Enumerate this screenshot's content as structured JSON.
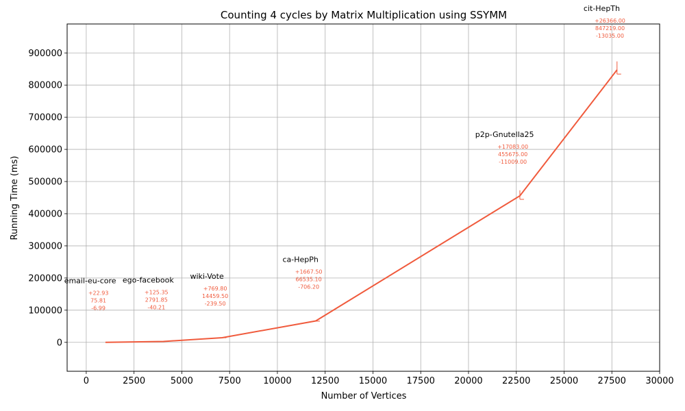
{
  "chart_data": {
    "type": "line",
    "title": "Counting 4 cycles by Matrix Multiplication using SSYMM",
    "xlabel": "Number of Vertices",
    "ylabel": "Running Time (ms)",
    "xlim": [
      -1000,
      30000
    ],
    "ylim": [
      -90000,
      990000
    ],
    "xticks": [
      0,
      2500,
      5000,
      7500,
      10000,
      12500,
      15000,
      17500,
      20000,
      22500,
      25000,
      27500,
      30000
    ],
    "yticks": [
      0,
      100000,
      200000,
      300000,
      400000,
      500000,
      600000,
      700000,
      800000,
      900000
    ],
    "x_tick_labels": [
      "0",
      "2500",
      "5000",
      "7500",
      "10000",
      "12500",
      "15000",
      "17500",
      "20000",
      "22500",
      "25000",
      "27500",
      "30000"
    ],
    "y_tick_labels": [
      "0",
      "100000",
      "200000",
      "300000",
      "400000",
      "500000",
      "600000",
      "700000",
      "800000",
      "900000"
    ],
    "grid": true,
    "line_color": "#f05a3c",
    "points": [
      {
        "name": "email-eu-core",
        "x": 1005,
        "y": 75.81,
        "plus": "+22.93",
        "mean": "75.81",
        "minus": "-6.99"
      },
      {
        "name": "ego-facebook",
        "x": 4039,
        "y": 2791.85,
        "plus": "+125.35",
        "mean": "2791.85",
        "minus": "-40.21"
      },
      {
        "name": "wiki-Vote",
        "x": 7115,
        "y": 14459.5,
        "plus": "+769.80",
        "mean": "14459.50",
        "minus": "-239.50"
      },
      {
        "name": "ca-HepPh",
        "x": 12008,
        "y": 66535.1,
        "plus": "+1667.50",
        "mean": "66535.10",
        "minus": "-706.20"
      },
      {
        "name": "p2p-Gnutella25",
        "x": 22687,
        "y": 455675,
        "plus": "+17083.00",
        "mean": "455675.00",
        "minus": "-11009.00"
      },
      {
        "name": "cit-HepTh",
        "x": 27770,
        "y": 847219,
        "plus": "+26366.00",
        "mean": "847219.00",
        "minus": "-13035.00"
      }
    ]
  }
}
